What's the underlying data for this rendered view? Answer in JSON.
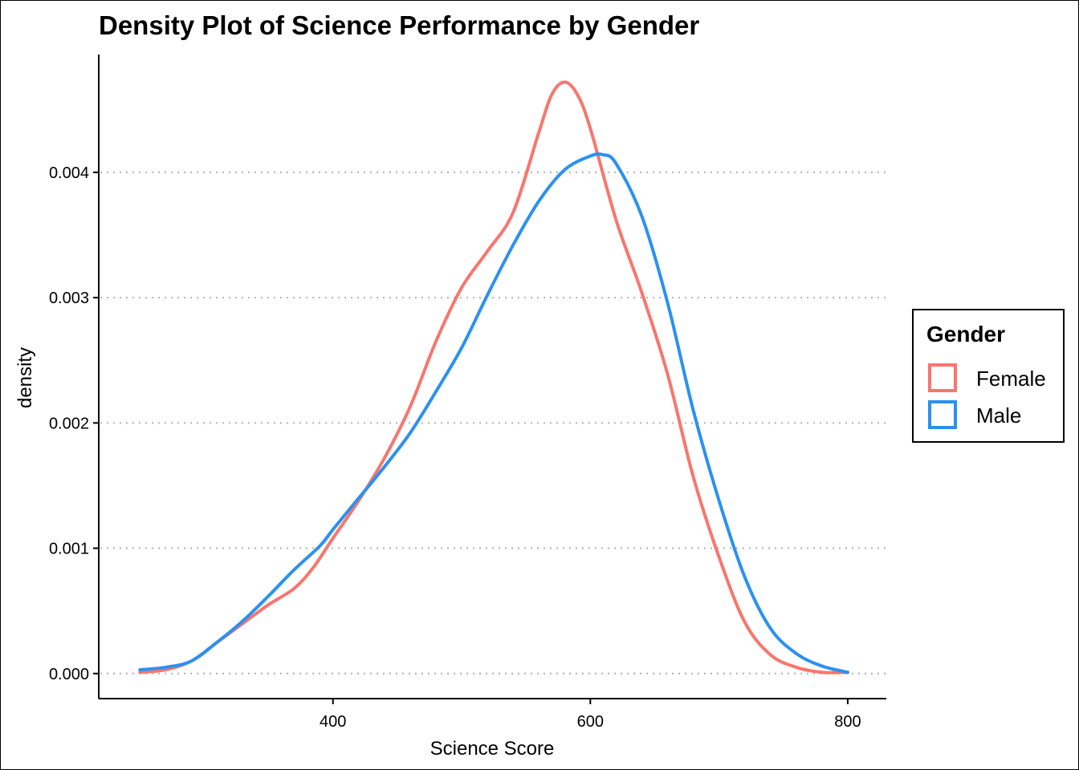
{
  "chart_data": {
    "type": "line",
    "title": "Density Plot of Science Performance by Gender",
    "xlabel": "Science Score",
    "ylabel": "density",
    "xlim": [
      218,
      830
    ],
    "ylim": [
      -0.0002,
      0.00494
    ],
    "x_ticks": [
      400,
      600,
      800
    ],
    "y_ticks": [
      0.0,
      0.001,
      0.002,
      0.003,
      0.004
    ],
    "x_tick_labels": [
      "400",
      "600",
      "800"
    ],
    "y_tick_labels": [
      "0.000",
      "0.001",
      "0.002",
      "0.003",
      "0.004"
    ],
    "grid": "horizontal-dotted",
    "legend": {
      "title": "Gender",
      "placement": "right"
    },
    "series": [
      {
        "name": "Female",
        "color": "#F8766D",
        "x": [
          250,
          270,
          290,
          310,
          330,
          350,
          370,
          385,
          400,
          420,
          440,
          460,
          480,
          500,
          520,
          540,
          560,
          570,
          580,
          590,
          600,
          620,
          640,
          660,
          680,
          700,
          720,
          740,
          760,
          780,
          800
        ],
        "y": [
          1e-05,
          3e-05,
          0.0001,
          0.00025,
          0.0004,
          0.00055,
          0.00068,
          0.00085,
          0.00108,
          0.00138,
          0.00172,
          0.00213,
          0.00265,
          0.00308,
          0.00337,
          0.00368,
          0.00432,
          0.00462,
          0.00472,
          0.00462,
          0.00435,
          0.00362,
          0.00304,
          0.00239,
          0.00157,
          0.00093,
          0.00041,
          0.00015,
          5e-05,
          1e-05,
          1e-05
        ]
      },
      {
        "name": "Male",
        "color": "#2B91F0",
        "x": [
          250,
          270,
          290,
          310,
          330,
          350,
          370,
          390,
          400,
          420,
          440,
          460,
          480,
          500,
          520,
          540,
          560,
          580,
          600,
          610,
          620,
          640,
          660,
          680,
          700,
          720,
          740,
          760,
          780,
          800
        ],
        "y": [
          3e-05,
          5e-05,
          0.0001,
          0.00025,
          0.00042,
          0.00062,
          0.00083,
          0.00102,
          0.00115,
          0.0014,
          0.00165,
          0.00192,
          0.00225,
          0.0026,
          0.00302,
          0.00342,
          0.00377,
          0.00402,
          0.00413,
          0.00414,
          0.00407,
          0.00365,
          0.00296,
          0.0021,
          0.00138,
          0.00077,
          0.00036,
          0.00016,
          6e-05,
          1e-05
        ]
      }
    ]
  }
}
